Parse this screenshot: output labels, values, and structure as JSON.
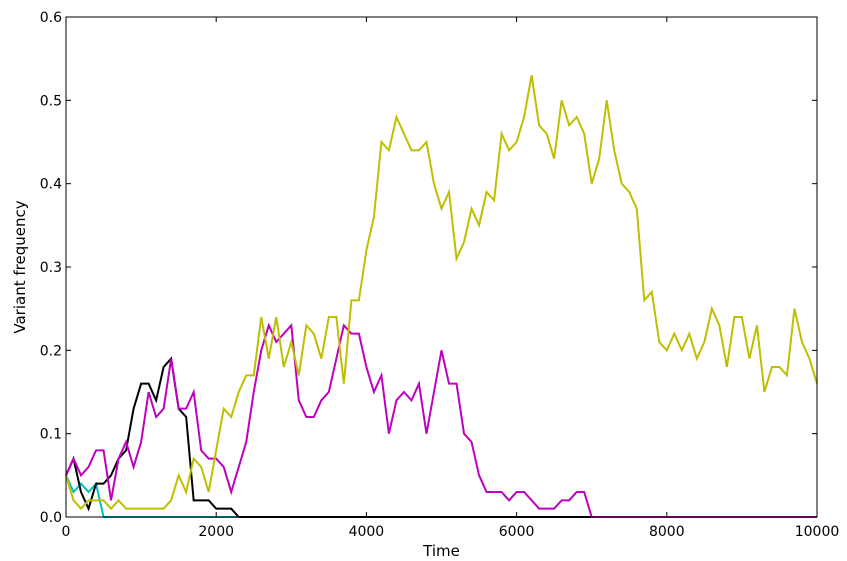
{
  "chart_data": {
    "type": "line",
    "title": "",
    "xlabel": "Time",
    "ylabel": "Variant frequency",
    "xlim": [
      0,
      10000
    ],
    "ylim": [
      0,
      0.6
    ],
    "xticks": [
      0,
      2000,
      4000,
      6000,
      8000,
      10000
    ],
    "yticks": [
      0.0,
      0.1,
      0.2,
      0.3,
      0.4,
      0.5,
      0.6
    ],
    "xtick_labels": [
      "0",
      "2000",
      "4000",
      "6000",
      "8000",
      "10000"
    ],
    "ytick_labels": [
      "0.0",
      "0.1",
      "0.2",
      "0.3",
      "0.4",
      "0.5",
      "0.6"
    ],
    "grid": false,
    "legend": "none",
    "series": [
      {
        "color": "#00bfbf",
        "points": [
          [
            0,
            0.05
          ],
          [
            100,
            0.03
          ],
          [
            200,
            0.04
          ],
          [
            300,
            0.03
          ],
          [
            400,
            0.04
          ],
          [
            450,
            0.02
          ],
          [
            500,
            0.0
          ],
          [
            10000,
            0.0
          ]
        ]
      },
      {
        "color": "#000000",
        "points": [
          [
            0,
            0.05
          ],
          [
            100,
            0.07
          ],
          [
            200,
            0.03
          ],
          [
            300,
            0.01
          ],
          [
            400,
            0.04
          ],
          [
            500,
            0.04
          ],
          [
            600,
            0.05
          ],
          [
            700,
            0.07
          ],
          [
            800,
            0.08
          ],
          [
            900,
            0.13
          ],
          [
            1000,
            0.16
          ],
          [
            1100,
            0.16
          ],
          [
            1200,
            0.14
          ],
          [
            1300,
            0.18
          ],
          [
            1400,
            0.19
          ],
          [
            1500,
            0.13
          ],
          [
            1600,
            0.12
          ],
          [
            1700,
            0.02
          ],
          [
            1800,
            0.02
          ],
          [
            1900,
            0.02
          ],
          [
            2000,
            0.01
          ],
          [
            2100,
            0.01
          ],
          [
            2200,
            0.01
          ],
          [
            2300,
            0.0
          ],
          [
            10000,
            0.0
          ]
        ]
      },
      {
        "color": "#bf00bf",
        "points": [
          [
            0,
            0.05
          ],
          [
            100,
            0.07
          ],
          [
            200,
            0.05
          ],
          [
            300,
            0.06
          ],
          [
            400,
            0.08
          ],
          [
            500,
            0.08
          ],
          [
            600,
            0.02
          ],
          [
            700,
            0.07
          ],
          [
            800,
            0.09
          ],
          [
            900,
            0.06
          ],
          [
            1000,
            0.09
          ],
          [
            1100,
            0.15
          ],
          [
            1200,
            0.12
          ],
          [
            1300,
            0.13
          ],
          [
            1400,
            0.19
          ],
          [
            1500,
            0.13
          ],
          [
            1600,
            0.13
          ],
          [
            1700,
            0.15
          ],
          [
            1800,
            0.08
          ],
          [
            1900,
            0.07
          ],
          [
            2000,
            0.07
          ],
          [
            2100,
            0.06
          ],
          [
            2200,
            0.03
          ],
          [
            2300,
            0.06
          ],
          [
            2400,
            0.09
          ],
          [
            2500,
            0.15
          ],
          [
            2600,
            0.2
          ],
          [
            2700,
            0.23
          ],
          [
            2800,
            0.21
          ],
          [
            2900,
            0.22
          ],
          [
            3000,
            0.23
          ],
          [
            3100,
            0.14
          ],
          [
            3200,
            0.12
          ],
          [
            3300,
            0.12
          ],
          [
            3400,
            0.14
          ],
          [
            3500,
            0.15
          ],
          [
            3600,
            0.19
          ],
          [
            3700,
            0.23
          ],
          [
            3800,
            0.22
          ],
          [
            3900,
            0.22
          ],
          [
            4000,
            0.18
          ],
          [
            4100,
            0.15
          ],
          [
            4200,
            0.17
          ],
          [
            4300,
            0.1
          ],
          [
            4400,
            0.14
          ],
          [
            4500,
            0.15
          ],
          [
            4600,
            0.14
          ],
          [
            4700,
            0.16
          ],
          [
            4800,
            0.1
          ],
          [
            4900,
            0.15
          ],
          [
            5000,
            0.2
          ],
          [
            5100,
            0.16
          ],
          [
            5200,
            0.16
          ],
          [
            5300,
            0.1
          ],
          [
            5400,
            0.09
          ],
          [
            5500,
            0.05
          ],
          [
            5600,
            0.03
          ],
          [
            5700,
            0.03
          ],
          [
            5800,
            0.03
          ],
          [
            5900,
            0.02
          ],
          [
            6000,
            0.03
          ],
          [
            6100,
            0.03
          ],
          [
            6200,
            0.02
          ],
          [
            6300,
            0.01
          ],
          [
            6400,
            0.01
          ],
          [
            6500,
            0.01
          ],
          [
            6600,
            0.02
          ],
          [
            6700,
            0.02
          ],
          [
            6800,
            0.03
          ],
          [
            6900,
            0.03
          ],
          [
            7000,
            0.0
          ],
          [
            10000,
            0.0
          ]
        ]
      },
      {
        "color": "#bfbf00",
        "points": [
          [
            0,
            0.05
          ],
          [
            100,
            0.02
          ],
          [
            200,
            0.01
          ],
          [
            300,
            0.02
          ],
          [
            400,
            0.02
          ],
          [
            500,
            0.02
          ],
          [
            600,
            0.01
          ],
          [
            700,
            0.02
          ],
          [
            800,
            0.01
          ],
          [
            900,
            0.01
          ],
          [
            1000,
            0.01
          ],
          [
            1100,
            0.01
          ],
          [
            1200,
            0.01
          ],
          [
            1300,
            0.01
          ],
          [
            1400,
            0.02
          ],
          [
            1500,
            0.05
          ],
          [
            1600,
            0.03
          ],
          [
            1700,
            0.07
          ],
          [
            1800,
            0.06
          ],
          [
            1900,
            0.03
          ],
          [
            2000,
            0.08
          ],
          [
            2100,
            0.13
          ],
          [
            2200,
            0.12
          ],
          [
            2300,
            0.15
          ],
          [
            2400,
            0.17
          ],
          [
            2500,
            0.17
          ],
          [
            2600,
            0.24
          ],
          [
            2700,
            0.19
          ],
          [
            2800,
            0.24
          ],
          [
            2900,
            0.18
          ],
          [
            3000,
            0.21
          ],
          [
            3100,
            0.17
          ],
          [
            3200,
            0.23
          ],
          [
            3300,
            0.22
          ],
          [
            3400,
            0.19
          ],
          [
            3500,
            0.24
          ],
          [
            3600,
            0.24
          ],
          [
            3700,
            0.16
          ],
          [
            3800,
            0.26
          ],
          [
            3900,
            0.26
          ],
          [
            4000,
            0.32
          ],
          [
            4100,
            0.36
          ],
          [
            4200,
            0.45
          ],
          [
            4300,
            0.44
          ],
          [
            4400,
            0.48
          ],
          [
            4500,
            0.46
          ],
          [
            4600,
            0.44
          ],
          [
            4700,
            0.44
          ],
          [
            4800,
            0.45
          ],
          [
            4900,
            0.4
          ],
          [
            5000,
            0.37
          ],
          [
            5100,
            0.39
          ],
          [
            5200,
            0.31
          ],
          [
            5300,
            0.33
          ],
          [
            5400,
            0.37
          ],
          [
            5500,
            0.35
          ],
          [
            5600,
            0.39
          ],
          [
            5700,
            0.38
          ],
          [
            5800,
            0.46
          ],
          [
            5900,
            0.44
          ],
          [
            6000,
            0.45
          ],
          [
            6100,
            0.48
          ],
          [
            6200,
            0.53
          ],
          [
            6300,
            0.47
          ],
          [
            6400,
            0.46
          ],
          [
            6500,
            0.43
          ],
          [
            6600,
            0.5
          ],
          [
            6700,
            0.47
          ],
          [
            6800,
            0.48
          ],
          [
            6900,
            0.46
          ],
          [
            7000,
            0.4
          ],
          [
            7100,
            0.43
          ],
          [
            7200,
            0.5
          ],
          [
            7300,
            0.44
          ],
          [
            7400,
            0.4
          ],
          [
            7500,
            0.39
          ],
          [
            7600,
            0.37
          ],
          [
            7700,
            0.26
          ],
          [
            7800,
            0.27
          ],
          [
            7900,
            0.21
          ],
          [
            8000,
            0.2
          ],
          [
            8100,
            0.22
          ],
          [
            8200,
            0.2
          ],
          [
            8300,
            0.22
          ],
          [
            8400,
            0.19
          ],
          [
            8500,
            0.21
          ],
          [
            8600,
            0.25
          ],
          [
            8700,
            0.23
          ],
          [
            8800,
            0.18
          ],
          [
            8900,
            0.24
          ],
          [
            9000,
            0.24
          ],
          [
            9100,
            0.19
          ],
          [
            9200,
            0.23
          ],
          [
            9300,
            0.15
          ],
          [
            9400,
            0.18
          ],
          [
            9500,
            0.18
          ],
          [
            9600,
            0.17
          ],
          [
            9700,
            0.25
          ],
          [
            9800,
            0.21
          ],
          [
            9900,
            0.19
          ],
          [
            10000,
            0.16
          ]
        ]
      }
    ]
  }
}
